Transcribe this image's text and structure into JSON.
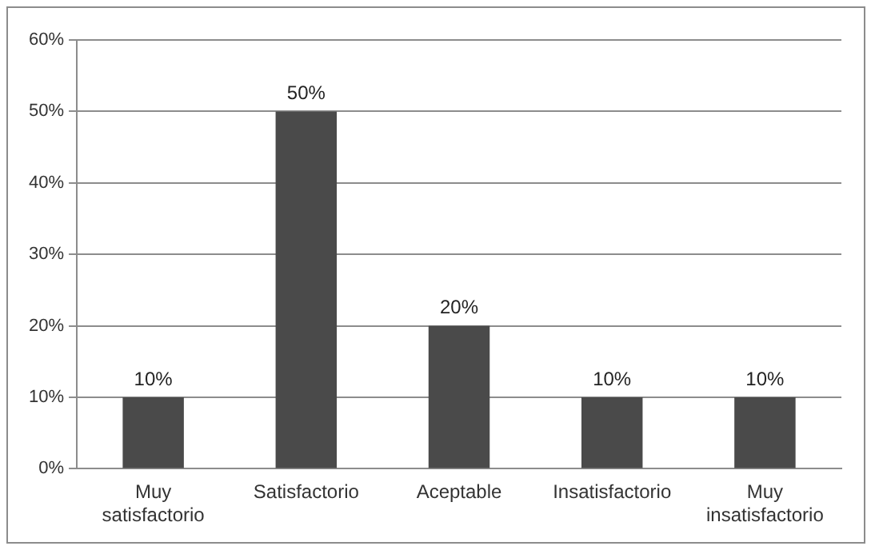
{
  "chart_data": {
    "type": "bar",
    "categories": [
      "Muy satisfactorio",
      "Satisfactorio",
      "Aceptable",
      "Insatisfactorio",
      "Muy insatisfactorio"
    ],
    "values": [
      10,
      50,
      20,
      10,
      10
    ],
    "color": "#4a4a4a",
    "value_labels": [
      "10%",
      "50%",
      "20%",
      "10%",
      "10%"
    ],
    "ylim": [
      0,
      60
    ],
    "yticks": [
      {
        "value": 0,
        "label": "0%"
      },
      {
        "value": 10,
        "label": "10%"
      },
      {
        "value": 20,
        "label": "20%"
      },
      {
        "value": 30,
        "label": "30%"
      },
      {
        "value": 40,
        "label": "40%"
      },
      {
        "value": 50,
        "label": "50%"
      },
      {
        "value": 60,
        "label": "60%"
      }
    ],
    "grid": "y",
    "legend": false
  }
}
